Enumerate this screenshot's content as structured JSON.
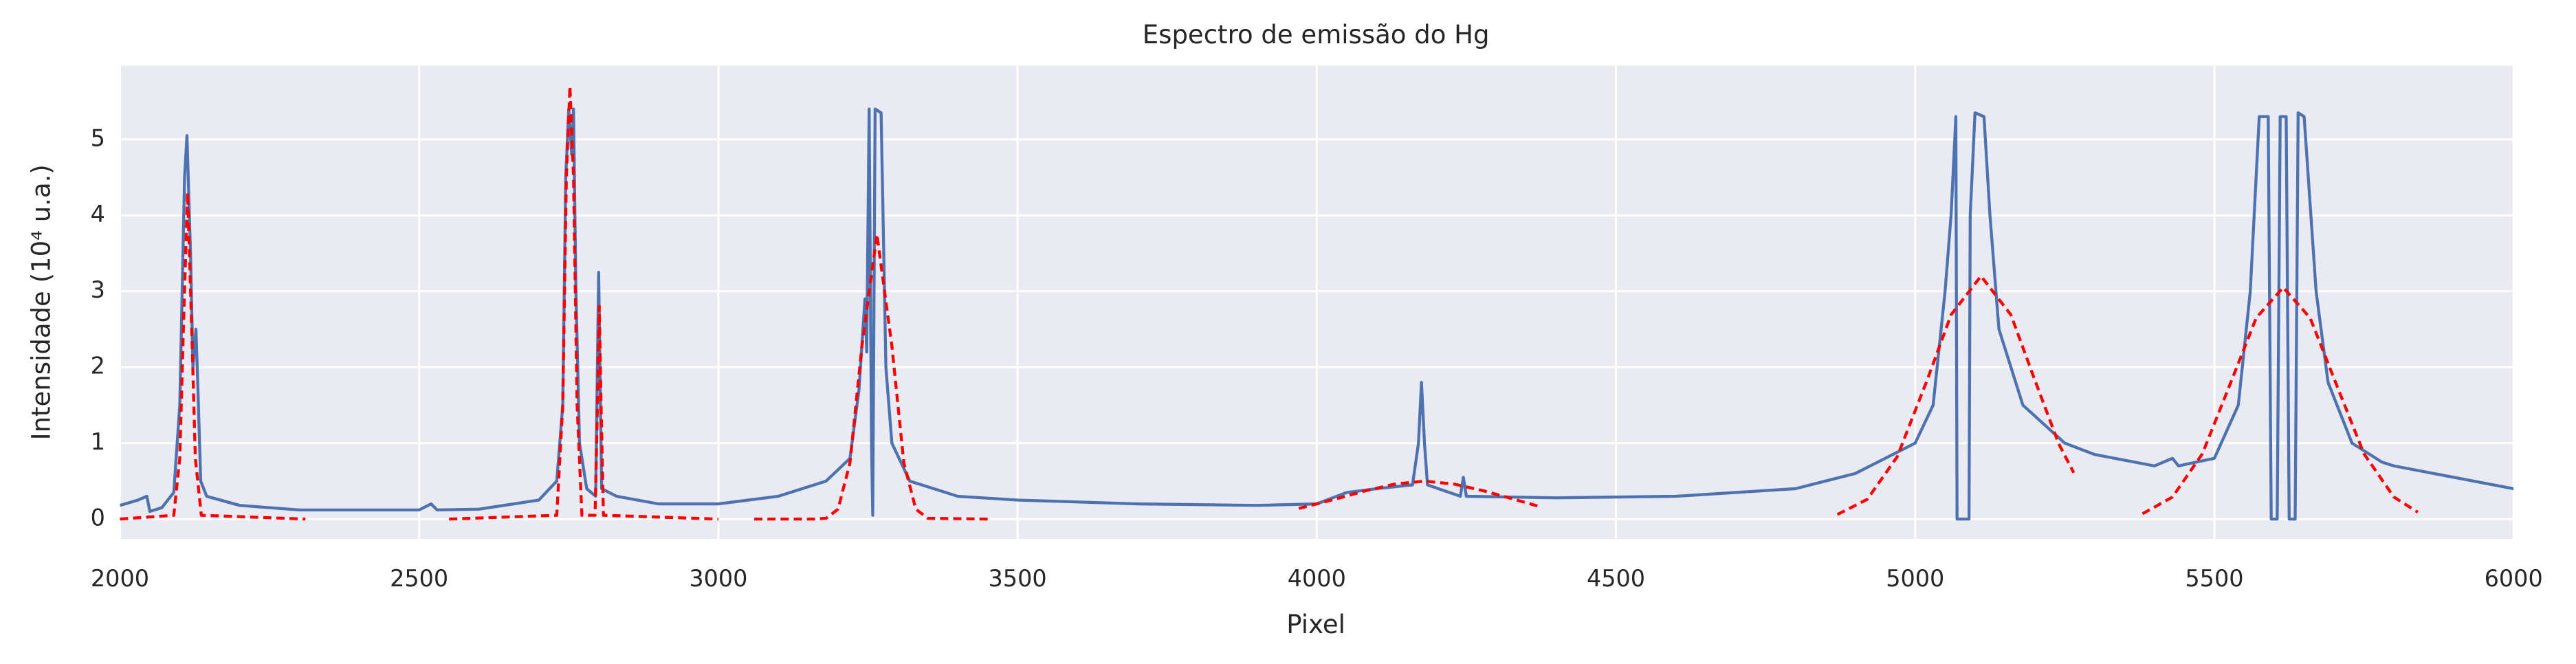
{
  "chart_data": {
    "type": "line",
    "title": "Espectro de emissão do Hg",
    "xlabel": "Pixel",
    "ylabel": "Intensidade (10⁴ u.a.)",
    "xlim": [
      2000,
      6000
    ],
    "xticks": [
      2000,
      2500,
      3000,
      3500,
      4000,
      4500,
      5000,
      5500,
      6000
    ],
    "ylim": [
      -0.26,
      5.97
    ],
    "yticks": [
      0,
      1,
      2,
      3,
      4,
      5
    ],
    "grid": true,
    "background": "#eaeaf2",
    "series": [
      {
        "color": "#4c72b0",
        "linestyle": "solid",
        "x": [
          2000,
          2030,
          2045,
          2050,
          2070,
          2090,
          2100,
          2108,
          2112,
          2118,
          2122,
          2127,
          2130,
          2135,
          2145,
          2200,
          2300,
          2500,
          2520,
          2530,
          2600,
          2700,
          2730,
          2740,
          2745,
          2750,
          2755,
          2758,
          2762,
          2768,
          2780,
          2795,
          2800,
          2805,
          2830,
          2900,
          3000,
          3100,
          3180,
          3220,
          3235,
          3245,
          3248,
          3252,
          3256,
          3258,
          3262,
          3272,
          3280,
          3290,
          3320,
          3400,
          3500,
          3700,
          3900,
          4000,
          4050,
          4100,
          4160,
          4170,
          4175,
          4180,
          4185,
          4240,
          4245,
          4250,
          4400,
          4600,
          4800,
          4900,
          4950,
          5000,
          5030,
          5050,
          5060,
          5068,
          5070,
          5090,
          5092,
          5100,
          5115,
          5125,
          5140,
          5180,
          5250,
          5300,
          5400,
          5430,
          5440,
          5500,
          5540,
          5560,
          5575,
          5590,
          5595,
          5605,
          5610,
          5620,
          5625,
          5635,
          5640,
          5650,
          5670,
          5690,
          5730,
          5780,
          5800,
          5900,
          6000
        ],
        "values": [
          0.18,
          0.25,
          0.3,
          0.1,
          0.15,
          0.35,
          1.5,
          4.5,
          5.05,
          3.5,
          2.0,
          2.5,
          1.8,
          0.5,
          0.3,
          0.18,
          0.12,
          0.12,
          0.2,
          0.12,
          0.13,
          0.25,
          0.5,
          1.5,
          4.5,
          5.4,
          4.8,
          5.4,
          3,
          1.0,
          0.4,
          0.3,
          3.25,
          0.4,
          0.3,
          0.2,
          0.2,
          0.3,
          0.5,
          0.8,
          1.7,
          2.9,
          2.2,
          5.4,
          1.0,
          0.05,
          5.4,
          5.35,
          2.0,
          1.0,
          0.5,
          0.3,
          0.25,
          0.2,
          0.18,
          0.2,
          0.35,
          0.4,
          0.45,
          1.0,
          1.8,
          1.0,
          0.45,
          0.3,
          0.55,
          0.3,
          0.28,
          0.3,
          0.4,
          0.6,
          0.8,
          1.0,
          1.5,
          3.0,
          4.0,
          5.3,
          0,
          0,
          4.0,
          5.35,
          5.3,
          4.0,
          2.5,
          1.5,
          1.0,
          0.85,
          0.7,
          0.8,
          0.7,
          0.8,
          1.5,
          3.0,
          5.3,
          5.3,
          0,
          0,
          5.3,
          5.3,
          0,
          0,
          5.35,
          5.3,
          3.0,
          1.8,
          1.0,
          0.75,
          0.7,
          0.55,
          0.4
        ]
      },
      {
        "color": "#ff0000",
        "linestyle": "dashed",
        "x": [
          2000,
          2090,
          2100,
          2106,
          2113,
          2120,
          2126,
          2136,
          2310
        ],
        "values": [
          0,
          0.05,
          0.8,
          2.5,
          4.3,
          2.5,
          0.8,
          0.05,
          0
        ]
      },
      {
        "color": "#ff0000",
        "linestyle": "dashed",
        "x": [
          2550,
          2730,
          2740,
          2746,
          2752,
          2758,
          2764,
          2772,
          2794,
          2798,
          2801,
          2804,
          2808,
          3000
        ],
        "values": [
          0,
          0.05,
          1.5,
          4.5,
          5.7,
          4.5,
          1.5,
          0.05,
          0.05,
          1.5,
          2.8,
          1.5,
          0.05,
          0
        ]
      },
      {
        "color": "#ff0000",
        "linestyle": "dashed",
        "x": [
          3060,
          3160,
          3180,
          3200,
          3220,
          3240,
          3265,
          3290,
          3310,
          3330,
          3350,
          3450
        ],
        "values": [
          0,
          0,
          0.01,
          0.13,
          0.74,
          2.28,
          3.75,
          2.28,
          0.74,
          0.13,
          0.01,
          0
        ]
      },
      {
        "color": "#ff0000",
        "linestyle": "dashed",
        "x": [
          3970,
          4030,
          4080,
          4130,
          4180,
          4230,
          4280,
          4330,
          4370
        ],
        "values": [
          0.14,
          0.26,
          0.37,
          0.46,
          0.5,
          0.46,
          0.37,
          0.26,
          0.17
        ]
      },
      {
        "color": "#ff0000",
        "linestyle": "dashed",
        "x": [
          4870,
          4920,
          4970,
          5020,
          5060,
          5110,
          5160,
          5200,
          5240,
          5265
        ],
        "values": [
          0.06,
          0.26,
          0.82,
          1.83,
          2.69,
          3.2,
          2.69,
          1.83,
          0.99,
          0.61
        ]
      },
      {
        "color": "#ff0000",
        "linestyle": "dashed",
        "x": [
          5380,
          5430,
          5480,
          5530,
          5570,
          5615,
          5660,
          5700,
          5750,
          5800,
          5840
        ],
        "values": [
          0.07,
          0.29,
          0.86,
          1.85,
          2.65,
          3.05,
          2.65,
          1.85,
          0.86,
          0.29,
          0.09
        ]
      }
    ]
  }
}
